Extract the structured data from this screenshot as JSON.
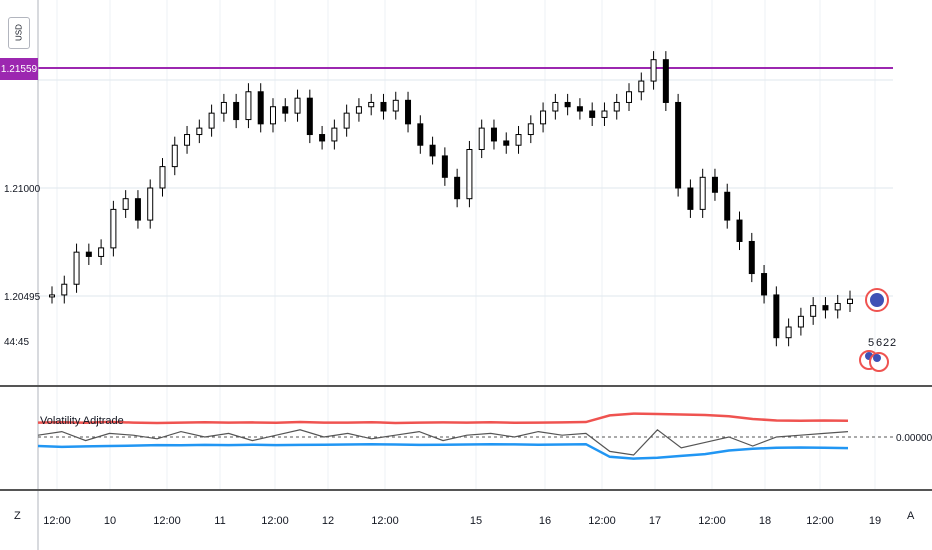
{
  "currency_badge": "USD",
  "price_tag": "1.21559",
  "countdown": "44:45",
  "y_ticks": [
    "1.21000",
    "1.20495"
  ],
  "indicator": {
    "name": "Volatility Adjtrade",
    "zero_label": "0.00000"
  },
  "x_ticks": [
    "12:00",
    "10",
    "12:00",
    "11",
    "12:00",
    "12",
    "12:00",
    "15",
    "16",
    "12:00",
    "17",
    "12:00",
    "18",
    "12:00",
    "19"
  ],
  "buttons": {
    "left": "Z",
    "right": "A"
  },
  "event_badges": [
    "5",
    "6",
    "2",
    "2"
  ],
  "colors": {
    "bull": "#ffffff",
    "bear": "#000000",
    "purple_line": "#9c27b0",
    "upper_band": "#ef5350",
    "lower_band": "#2196f3",
    "osc": "#555555"
  },
  "chart_data": [
    {
      "type": "candlestick",
      "price_line": 1.21559,
      "series_close": [
        1.205,
        1.2055,
        1.207,
        1.2068,
        1.2072,
        1.209,
        1.2095,
        1.2085,
        1.21,
        1.211,
        1.212,
        1.2125,
        1.2128,
        1.2135,
        1.214,
        1.2132,
        1.2145,
        1.213,
        1.2138,
        1.2135,
        1.2142,
        1.2125,
        1.2122,
        1.2128,
        1.2135,
        1.2138,
        1.214,
        1.2136,
        1.2141,
        1.213,
        1.212,
        1.2115,
        1.2105,
        1.2095,
        1.2118,
        1.2128,
        1.2122,
        1.212,
        1.2125,
        1.213,
        1.2136,
        1.214,
        1.2138,
        1.2136,
        1.2133,
        1.2136,
        1.214,
        1.2145,
        1.215,
        1.216,
        1.214,
        1.21,
        1.209,
        1.2105,
        1.2098,
        1.2085,
        1.2075,
        1.206,
        1.205,
        1.203,
        1.2035,
        1.204,
        1.2045,
        1.2043,
        1.2046,
        1.2048
      ],
      "y_ticks": [
        1.21,
        1.20495
      ]
    },
    {
      "type": "line",
      "title": "Volatility Adjtrade",
      "series": [
        {
          "values": [
            0.8,
            0.82,
            0.79,
            0.84,
            0.8,
            0.78,
            0.8,
            0.82,
            0.8,
            0.81,
            0.79,
            0.83,
            0.8,
            0.8,
            0.82,
            0.78,
            0.8,
            0.81,
            0.8,
            0.82,
            0.79,
            0.8,
            0.81,
            0.83,
            1.2,
            1.3,
            1.28,
            1.25,
            1.22,
            1.15,
            1.0,
            0.92,
            0.9,
            0.92,
            0.9
          ]
        },
        {
          "values": [
            -0.5,
            -0.55,
            -0.52,
            -0.5,
            -0.48,
            -0.45,
            -0.46,
            -0.44,
            -0.45,
            -0.43,
            -0.45,
            -0.44,
            -0.43,
            -0.42,
            -0.4,
            -0.42,
            -0.44,
            -0.43,
            -0.42,
            -0.4,
            -0.41,
            -0.43,
            -0.42,
            -0.4,
            -1.1,
            -1.2,
            -1.15,
            -1.05,
            -0.95,
            -0.75,
            -0.65,
            -0.6,
            -0.58,
            -0.6,
            -0.62
          ]
        },
        {
          "values": [
            0.1,
            0.3,
            -0.2,
            0.2,
            0.1,
            -0.1,
            0.3,
            0.0,
            0.2,
            -0.2,
            0.1,
            0.4,
            0.0,
            0.2,
            -0.1,
            0.1,
            0.3,
            -0.2,
            0.1,
            0.2,
            0.0,
            0.3,
            0.1,
            0.2,
            -0.8,
            -1.0,
            0.4,
            -0.6,
            -0.3,
            0.0,
            -0.5,
            0.0,
            0.1,
            0.2,
            0.3
          ]
        }
      ],
      "zero": 0.0
    }
  ]
}
